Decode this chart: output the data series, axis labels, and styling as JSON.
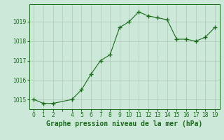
{
  "x": [
    0,
    1,
    2,
    4,
    5,
    6,
    7,
    8,
    9,
    10,
    11,
    12,
    13,
    14,
    15,
    16,
    17,
    18,
    19
  ],
  "y": [
    1015.0,
    1014.8,
    1014.8,
    1015.0,
    1015.5,
    1016.3,
    1017.0,
    1017.3,
    1018.7,
    1019.0,
    1019.5,
    1019.3,
    1019.2,
    1019.1,
    1018.1,
    1018.1,
    1018.0,
    1018.2,
    1018.7
  ],
  "line_color": "#1a6b1a",
  "marker_color": "#1a6b1a",
  "bg_color": "#cce8d8",
  "grid_color": "#b0c8b8",
  "title": "Graphe pression niveau de la mer (hPa)",
  "ylim_min": 1014.5,
  "ylim_max": 1019.9,
  "yticks": [
    1015,
    1016,
    1017,
    1018,
    1019
  ],
  "title_fontsize": 7.0,
  "tick_fontsize": 5.5,
  "title_color": "#1a6b1a",
  "tick_color": "#1a6b1a"
}
